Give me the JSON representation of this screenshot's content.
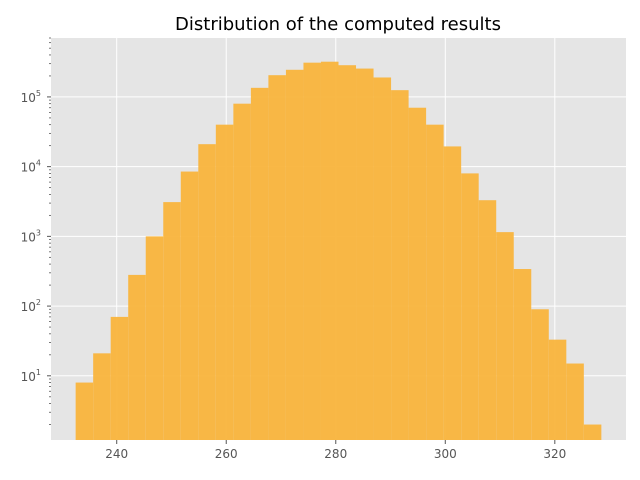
{
  "chart_data": {
    "type": "bar",
    "title": "Distribution of the computed results",
    "xlabel": "",
    "ylabel": "",
    "y_scale": "log",
    "grid": true,
    "bar_color": "#f9b43c",
    "background_color": "#e5e5e5",
    "xlim": [
      228,
      333
    ],
    "ylim": [
      1.2,
      700000
    ],
    "x_ticks": [
      240,
      260,
      280,
      300,
      320
    ],
    "y_ticks": [
      {
        "value": 10,
        "label_base": "10",
        "label_exp": "1"
      },
      {
        "value": 100,
        "label_base": "10",
        "label_exp": "2"
      },
      {
        "value": 1000,
        "label_base": "10",
        "label_exp": "3"
      },
      {
        "value": 10000,
        "label_base": "10",
        "label_exp": "4"
      },
      {
        "value": 100000,
        "label_base": "10",
        "label_exp": "5"
      }
    ],
    "bins": [
      {
        "x0": 232.5,
        "x1": 235.7,
        "count": 8
      },
      {
        "x0": 235.7,
        "x1": 238.9,
        "count": 21
      },
      {
        "x0": 238.9,
        "x1": 242.1,
        "count": 70
      },
      {
        "x0": 242.1,
        "x1": 245.3,
        "count": 280
      },
      {
        "x0": 245.3,
        "x1": 248.5,
        "count": 1000
      },
      {
        "x0": 248.5,
        "x1": 251.7,
        "count": 3100
      },
      {
        "x0": 251.7,
        "x1": 254.9,
        "count": 8500
      },
      {
        "x0": 254.9,
        "x1": 258.1,
        "count": 21000
      },
      {
        "x0": 258.1,
        "x1": 261.3,
        "count": 40000
      },
      {
        "x0": 261.3,
        "x1": 264.5,
        "count": 80000
      },
      {
        "x0": 264.5,
        "x1": 267.7,
        "count": 135000
      },
      {
        "x0": 267.7,
        "x1": 270.9,
        "count": 205000
      },
      {
        "x0": 270.9,
        "x1": 274.1,
        "count": 245000
      },
      {
        "x0": 274.1,
        "x1": 277.3,
        "count": 310000
      },
      {
        "x0": 277.3,
        "x1": 280.5,
        "count": 320000
      },
      {
        "x0": 280.5,
        "x1": 283.7,
        "count": 285000
      },
      {
        "x0": 283.7,
        "x1": 286.9,
        "count": 255000
      },
      {
        "x0": 286.9,
        "x1": 290.1,
        "count": 190000
      },
      {
        "x0": 290.1,
        "x1": 293.3,
        "count": 125000
      },
      {
        "x0": 293.3,
        "x1": 296.5,
        "count": 70000
      },
      {
        "x0": 296.5,
        "x1": 299.7,
        "count": 40000
      },
      {
        "x0": 299.7,
        "x1": 302.9,
        "count": 19500
      },
      {
        "x0": 302.9,
        "x1": 306.1,
        "count": 8000
      },
      {
        "x0": 306.1,
        "x1": 309.3,
        "count": 3300
      },
      {
        "x0": 309.3,
        "x1": 312.5,
        "count": 1150
      },
      {
        "x0": 312.5,
        "x1": 315.7,
        "count": 340
      },
      {
        "x0": 315.7,
        "x1": 318.9,
        "count": 90
      },
      {
        "x0": 318.9,
        "x1": 322.1,
        "count": 33
      },
      {
        "x0": 322.1,
        "x1": 325.3,
        "count": 15
      },
      {
        "x0": 325.3,
        "x1": 328.5,
        "count": 2
      }
    ]
  }
}
